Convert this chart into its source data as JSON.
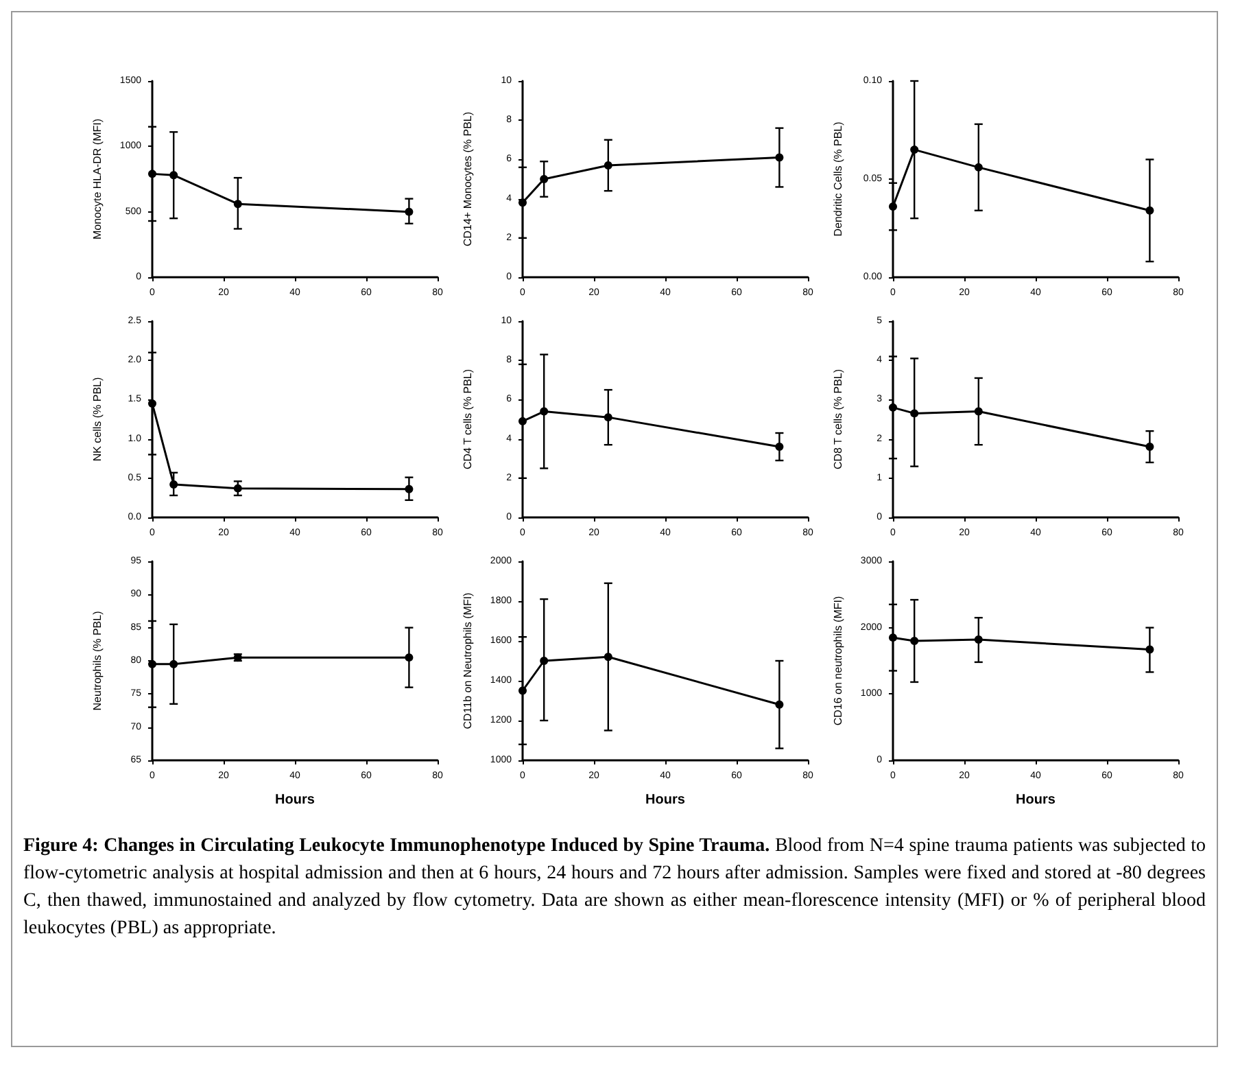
{
  "chart_data": [
    {
      "type": "line",
      "ylabel": "Monocyte HLA-DR (MFI)",
      "x": [
        0,
        6,
        24,
        72
      ],
      "xlim": [
        0,
        80
      ],
      "xticks": [
        0,
        20,
        40,
        60,
        80
      ],
      "ylim": [
        0,
        1500
      ],
      "yticks": [
        0,
        500,
        1000,
        1500
      ],
      "grid": false,
      "marker": "circle",
      "line_style": "solid",
      "series": [
        {
          "color": "#000000",
          "values": [
            790,
            780,
            560,
            500
          ],
          "errors": [
            [
              430,
              1150
            ],
            [
              450,
              1110
            ],
            [
              370,
              760
            ],
            [
              410,
              600
            ]
          ]
        }
      ]
    },
    {
      "type": "line",
      "ylabel": "CD14+ Monocytes (% PBL)",
      "x": [
        0,
        6,
        24,
        72
      ],
      "xlim": [
        0,
        80
      ],
      "xticks": [
        0,
        20,
        40,
        60,
        80
      ],
      "ylim": [
        0,
        10
      ],
      "yticks": [
        0,
        2,
        4,
        6,
        8,
        10
      ],
      "grid": false,
      "marker": "circle",
      "line_style": "solid",
      "series": [
        {
          "color": "#000000",
          "values": [
            3.8,
            5.0,
            5.7,
            6.1
          ],
          "errors": [
            [
              2.0,
              5.6
            ],
            [
              4.1,
              5.9
            ],
            [
              4.4,
              7.0
            ],
            [
              4.6,
              7.6
            ]
          ]
        }
      ]
    },
    {
      "type": "line",
      "ylabel": "Dendritic Cells (% PBL)",
      "x": [
        0,
        6,
        24,
        72
      ],
      "xlim": [
        0,
        80
      ],
      "xticks": [
        0,
        20,
        40,
        60,
        80
      ],
      "ylim": [
        0,
        0.1
      ],
      "yticks": [
        {
          "value": 0,
          "label": "0.00"
        },
        {
          "value": 0.05,
          "label": "0.05"
        },
        {
          "value": 0.1,
          "label": "0.10"
        }
      ],
      "grid": false,
      "marker": "circle",
      "line_style": "solid",
      "series": [
        {
          "color": "#000000",
          "values": [
            0.036,
            0.065,
            0.056,
            0.034
          ],
          "errors": [
            [
              0.024,
              0.048
            ],
            [
              0.03,
              0.1
            ],
            [
              0.034,
              0.078
            ],
            [
              0.008,
              0.06
            ]
          ]
        }
      ]
    },
    {
      "type": "line",
      "ylabel": "NK cells (% PBL)",
      "x": [
        0,
        6,
        24,
        72
      ],
      "xlim": [
        0,
        80
      ],
      "xticks": [
        0,
        20,
        40,
        60,
        80
      ],
      "ylim": [
        0,
        2.5
      ],
      "yticks": [
        {
          "value": 0,
          "label": "0.0"
        },
        {
          "value": 0.5,
          "label": "0.5"
        },
        {
          "value": 1,
          "label": "1.0"
        },
        {
          "value": 1.5,
          "label": "1.5"
        },
        {
          "value": 2,
          "label": "2.0"
        },
        {
          "value": 2.5,
          "label": "2.5"
        }
      ],
      "grid": false,
      "marker": "circle",
      "line_style": "solid",
      "series": [
        {
          "color": "#000000",
          "values": [
            1.45,
            0.42,
            0.37,
            0.36
          ],
          "errors": [
            [
              0.8,
              2.1
            ],
            [
              0.28,
              0.57
            ],
            [
              0.28,
              0.46
            ],
            [
              0.22,
              0.51
            ]
          ]
        }
      ]
    },
    {
      "type": "line",
      "ylabel": "CD4 T cells (% PBL)",
      "x": [
        0,
        6,
        24,
        72
      ],
      "xlim": [
        0,
        80
      ],
      "xticks": [
        0,
        20,
        40,
        60,
        80
      ],
      "ylim": [
        0,
        10
      ],
      "yticks": [
        0,
        2,
        4,
        6,
        8,
        10
      ],
      "grid": false,
      "marker": "circle",
      "line_style": "solid",
      "series": [
        {
          "color": "#000000",
          "values": [
            4.9,
            5.4,
            5.1,
            3.6
          ],
          "errors": [
            [
              2.0,
              7.8
            ],
            [
              2.5,
              8.3
            ],
            [
              3.7,
              6.5
            ],
            [
              2.9,
              4.3
            ]
          ]
        }
      ]
    },
    {
      "type": "line",
      "ylabel": "CD8 T cells (% PBL)",
      "x": [
        0,
        6,
        24,
        72
      ],
      "xlim": [
        0,
        80
      ],
      "xticks": [
        0,
        20,
        40,
        60,
        80
      ],
      "ylim": [
        0,
        5
      ],
      "yticks": [
        0,
        1,
        2,
        3,
        4,
        5
      ],
      "grid": false,
      "marker": "circle",
      "line_style": "solid",
      "series": [
        {
          "color": "#000000",
          "values": [
            2.8,
            2.65,
            2.7,
            1.8
          ],
          "errors": [
            [
              1.5,
              4.1
            ],
            [
              1.3,
              4.05
            ],
            [
              1.85,
              3.55
            ],
            [
              1.4,
              2.2
            ]
          ]
        }
      ]
    },
    {
      "type": "line",
      "ylabel": "Neutrophils (% PBL)",
      "xlabel": "Hours",
      "x": [
        0,
        6,
        24,
        72
      ],
      "xlim": [
        0,
        80
      ],
      "xticks": [
        0,
        20,
        40,
        60,
        80
      ],
      "ylim": [
        65,
        95
      ],
      "yticks": [
        65,
        70,
        75,
        80,
        85,
        90,
        95
      ],
      "grid": false,
      "marker": "circle",
      "line_style": "solid",
      "series": [
        {
          "color": "#000000",
          "values": [
            79.5,
            79.5,
            80.5,
            80.5
          ],
          "errors": [
            [
              73,
              86
            ],
            [
              73.5,
              85.5
            ],
            [
              80,
              81
            ],
            [
              76,
              85
            ]
          ]
        }
      ]
    },
    {
      "type": "line",
      "ylabel": "CD11b on Neutrophils (MFI)",
      "xlabel": "Hours",
      "x": [
        0,
        6,
        24,
        72
      ],
      "xlim": [
        0,
        80
      ],
      "xticks": [
        0,
        20,
        40,
        60,
        80
      ],
      "ylim": [
        1000,
        2000
      ],
      "yticks": [
        1000,
        1200,
        1400,
        1600,
        1800,
        2000
      ],
      "grid": false,
      "marker": "circle",
      "line_style": "solid",
      "series": [
        {
          "color": "#000000",
          "values": [
            1350,
            1500,
            1520,
            1280
          ],
          "errors": [
            [
              1080,
              1620
            ],
            [
              1200,
              1810
            ],
            [
              1150,
              1890
            ],
            [
              1060,
              1500
            ]
          ]
        }
      ]
    },
    {
      "type": "line",
      "ylabel": "CD16 on neutrophils (MFI)",
      "xlabel": "Hours",
      "x": [
        0,
        6,
        24,
        72
      ],
      "xlim": [
        0,
        80
      ],
      "xticks": [
        0,
        20,
        40,
        60,
        80
      ],
      "ylim": [
        0,
        3000
      ],
      "yticks": [
        0,
        1000,
        2000,
        3000
      ],
      "grid": false,
      "marker": "circle",
      "line_style": "solid",
      "series": [
        {
          "color": "#000000",
          "values": [
            1850,
            1800,
            1820,
            1670
          ],
          "errors": [
            [
              1350,
              2350
            ],
            [
              1180,
              2420
            ],
            [
              1480,
              2150
            ],
            [
              1330,
              2000
            ]
          ]
        }
      ],
      "annotations": [
        "Figure 4: Changes in Circulating Leukocyte Immunophenotype Induced by Spine Trauma.",
        "Blood from N=4 spine trauma patients was subjected to flow-cytometric analysis at hospital admission and then at 6 hours, 24 hours and 72 hours after admission. Samples were fixed and stored at -80 degrees C, then thawed, immunostained and analyzed by flow cytometry. Data are shown as either mean-florescence intensity (MFI) or % of peripheral blood leukocytes (PBL) as appropriate."
      ]
    }
  ]
}
